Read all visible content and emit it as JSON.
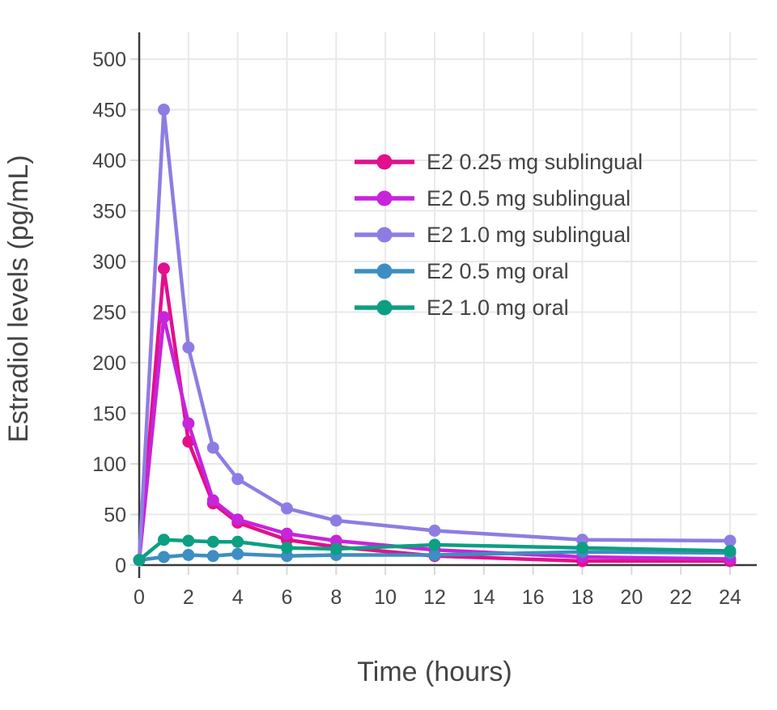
{
  "chart_data": {
    "type": "line",
    "title": "",
    "xlabel": "Time (hours)",
    "ylabel": "Estradiol levels (pg/mL)",
    "x": [
      0,
      1,
      2,
      3,
      4,
      6,
      8,
      12,
      18,
      24
    ],
    "series": [
      {
        "name": "E2 0.25 mg sublingual",
        "color": "#E2108C",
        "values": [
          5,
          293,
          122,
          61,
          42,
          25,
          18,
          9,
          4,
          4
        ]
      },
      {
        "name": "E2 0.5 mg sublingual",
        "color": "#C724DB",
        "values": [
          5,
          245,
          140,
          64,
          45,
          31,
          24,
          15,
          8,
          6
        ]
      },
      {
        "name": "E2 1.0 mg sublingual",
        "color": "#8F7CE3",
        "values": [
          5,
          450,
          215,
          116,
          85,
          56,
          44,
          34,
          25,
          24
        ]
      },
      {
        "name": "E2 0.5 mg oral",
        "color": "#3D8EC2",
        "values": [
          5,
          8,
          10,
          9,
          11,
          9,
          10,
          10,
          13,
          12
        ]
      },
      {
        "name": "E2 1.0 mg oral",
        "color": "#0C9F82",
        "values": [
          5,
          25,
          24,
          23,
          23,
          17,
          16,
          20,
          17,
          14
        ]
      }
    ],
    "xlim": [
      0,
      24
    ],
    "ylim": [
      0,
      500
    ],
    "x_ticks": [
      0,
      2,
      4,
      6,
      8,
      10,
      12,
      14,
      16,
      18,
      20,
      22,
      24
    ],
    "y_ticks": [
      0,
      50,
      100,
      150,
      200,
      250,
      300,
      350,
      400,
      450,
      500
    ],
    "grid": true,
    "legend_position": "inside-top-right",
    "colors": {
      "axis": "#3a3a3a",
      "grid": "#e9e9e9",
      "tick": "#d9d9d9",
      "text": "#444444",
      "background": "#ffffff"
    }
  }
}
